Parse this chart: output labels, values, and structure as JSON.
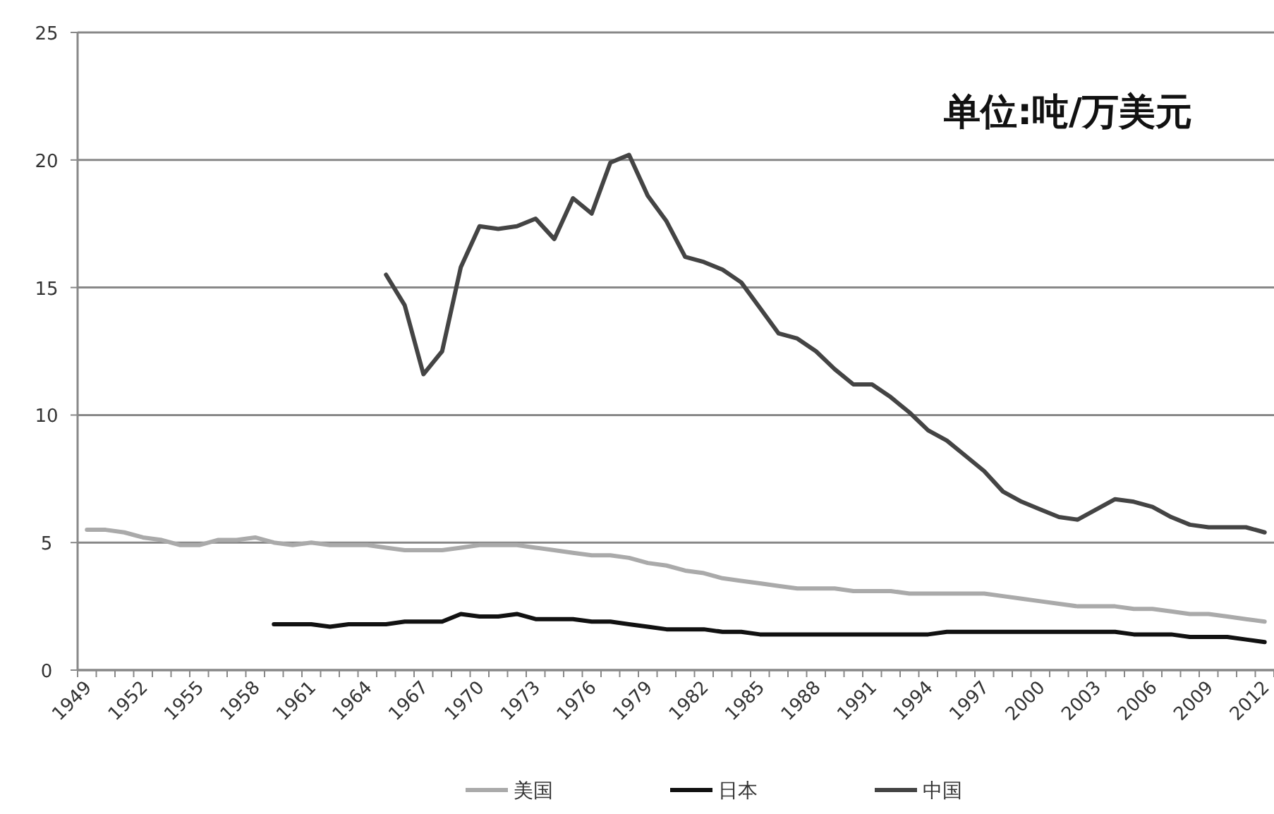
{
  "chart_data": {
    "type": "line",
    "categories": [
      "1949",
      null,
      null,
      "1952",
      null,
      null,
      "1955",
      null,
      null,
      "1958",
      null,
      null,
      "1961",
      null,
      null,
      "1964",
      null,
      null,
      "1967",
      null,
      null,
      "1970",
      null,
      null,
      "1973",
      null,
      null,
      "1976",
      null,
      null,
      "1979",
      null,
      null,
      "1982",
      null,
      null,
      "1985",
      null,
      null,
      "1988",
      null,
      null,
      "1991",
      null,
      null,
      "1994",
      null,
      null,
      "1997",
      null,
      null,
      "2000",
      null,
      null,
      "2003",
      null,
      null,
      "2006",
      null,
      null,
      "2009",
      null,
      null,
      "2012"
    ],
    "series": [
      {
        "name": "美国",
        "color": "#aaaaaa",
        "values": [
          5.5,
          5.5,
          5.4,
          5.2,
          5.1,
          4.9,
          4.9,
          5.1,
          5.1,
          5.2,
          5.0,
          4.9,
          5.0,
          4.9,
          4.9,
          4.9,
          4.8,
          4.7,
          4.7,
          4.7,
          4.8,
          4.9,
          4.9,
          4.9,
          4.8,
          4.7,
          4.6,
          4.5,
          4.5,
          4.4,
          4.2,
          4.1,
          3.9,
          3.8,
          3.6,
          3.5,
          3.4,
          3.3,
          3.2,
          3.2,
          3.2,
          3.1,
          3.1,
          3.1,
          3.0,
          3.0,
          3.0,
          3.0,
          3.0,
          2.9,
          2.8,
          2.7,
          2.6,
          2.5,
          2.5,
          2.5,
          2.4,
          2.4,
          2.3,
          2.2,
          2.2,
          2.1,
          2.0,
          1.9
        ]
      },
      {
        "name": "日本",
        "color": "#111111",
        "values": [
          null,
          null,
          null,
          null,
          null,
          null,
          null,
          null,
          null,
          null,
          1.8,
          1.8,
          1.8,
          1.7,
          1.8,
          1.8,
          1.8,
          1.9,
          1.9,
          1.9,
          2.2,
          2.1,
          2.1,
          2.2,
          2.0,
          2.0,
          2.0,
          1.9,
          1.9,
          1.8,
          1.7,
          1.6,
          1.6,
          1.6,
          1.5,
          1.5,
          1.4,
          1.4,
          1.4,
          1.4,
          1.4,
          1.4,
          1.4,
          1.4,
          1.4,
          1.4,
          1.5,
          1.5,
          1.5,
          1.5,
          1.5,
          1.5,
          1.5,
          1.5,
          1.5,
          1.5,
          1.4,
          1.4,
          1.4,
          1.3,
          1.3,
          1.3,
          1.2,
          1.1
        ]
      },
      {
        "name": "中国",
        "color": "#444444",
        "values": [
          null,
          null,
          null,
          null,
          null,
          null,
          null,
          null,
          null,
          null,
          null,
          null,
          null,
          null,
          null,
          null,
          15.5,
          14.3,
          11.6,
          12.5,
          15.8,
          17.4,
          17.3,
          17.4,
          17.7,
          16.9,
          18.5,
          17.9,
          19.9,
          20.2,
          18.6,
          17.6,
          16.2,
          16.0,
          15.7,
          15.2,
          14.2,
          13.2,
          13.0,
          12.5,
          11.8,
          11.2,
          11.2,
          10.7,
          10.1,
          9.4,
          9.0,
          8.4,
          7.8,
          7.0,
          6.6,
          6.3,
          6.0,
          5.9,
          6.3,
          6.7,
          6.6,
          6.4,
          6.0,
          5.7,
          5.6,
          5.6,
          5.6,
          5.4
        ]
      }
    ],
    "ylim": [
      0,
      25
    ],
    "yticks": [
      0,
      5,
      10,
      15,
      20,
      25
    ],
    "grid": "y",
    "legend": "bottom",
    "annotations": [
      "单位:吨/万美元"
    ]
  }
}
